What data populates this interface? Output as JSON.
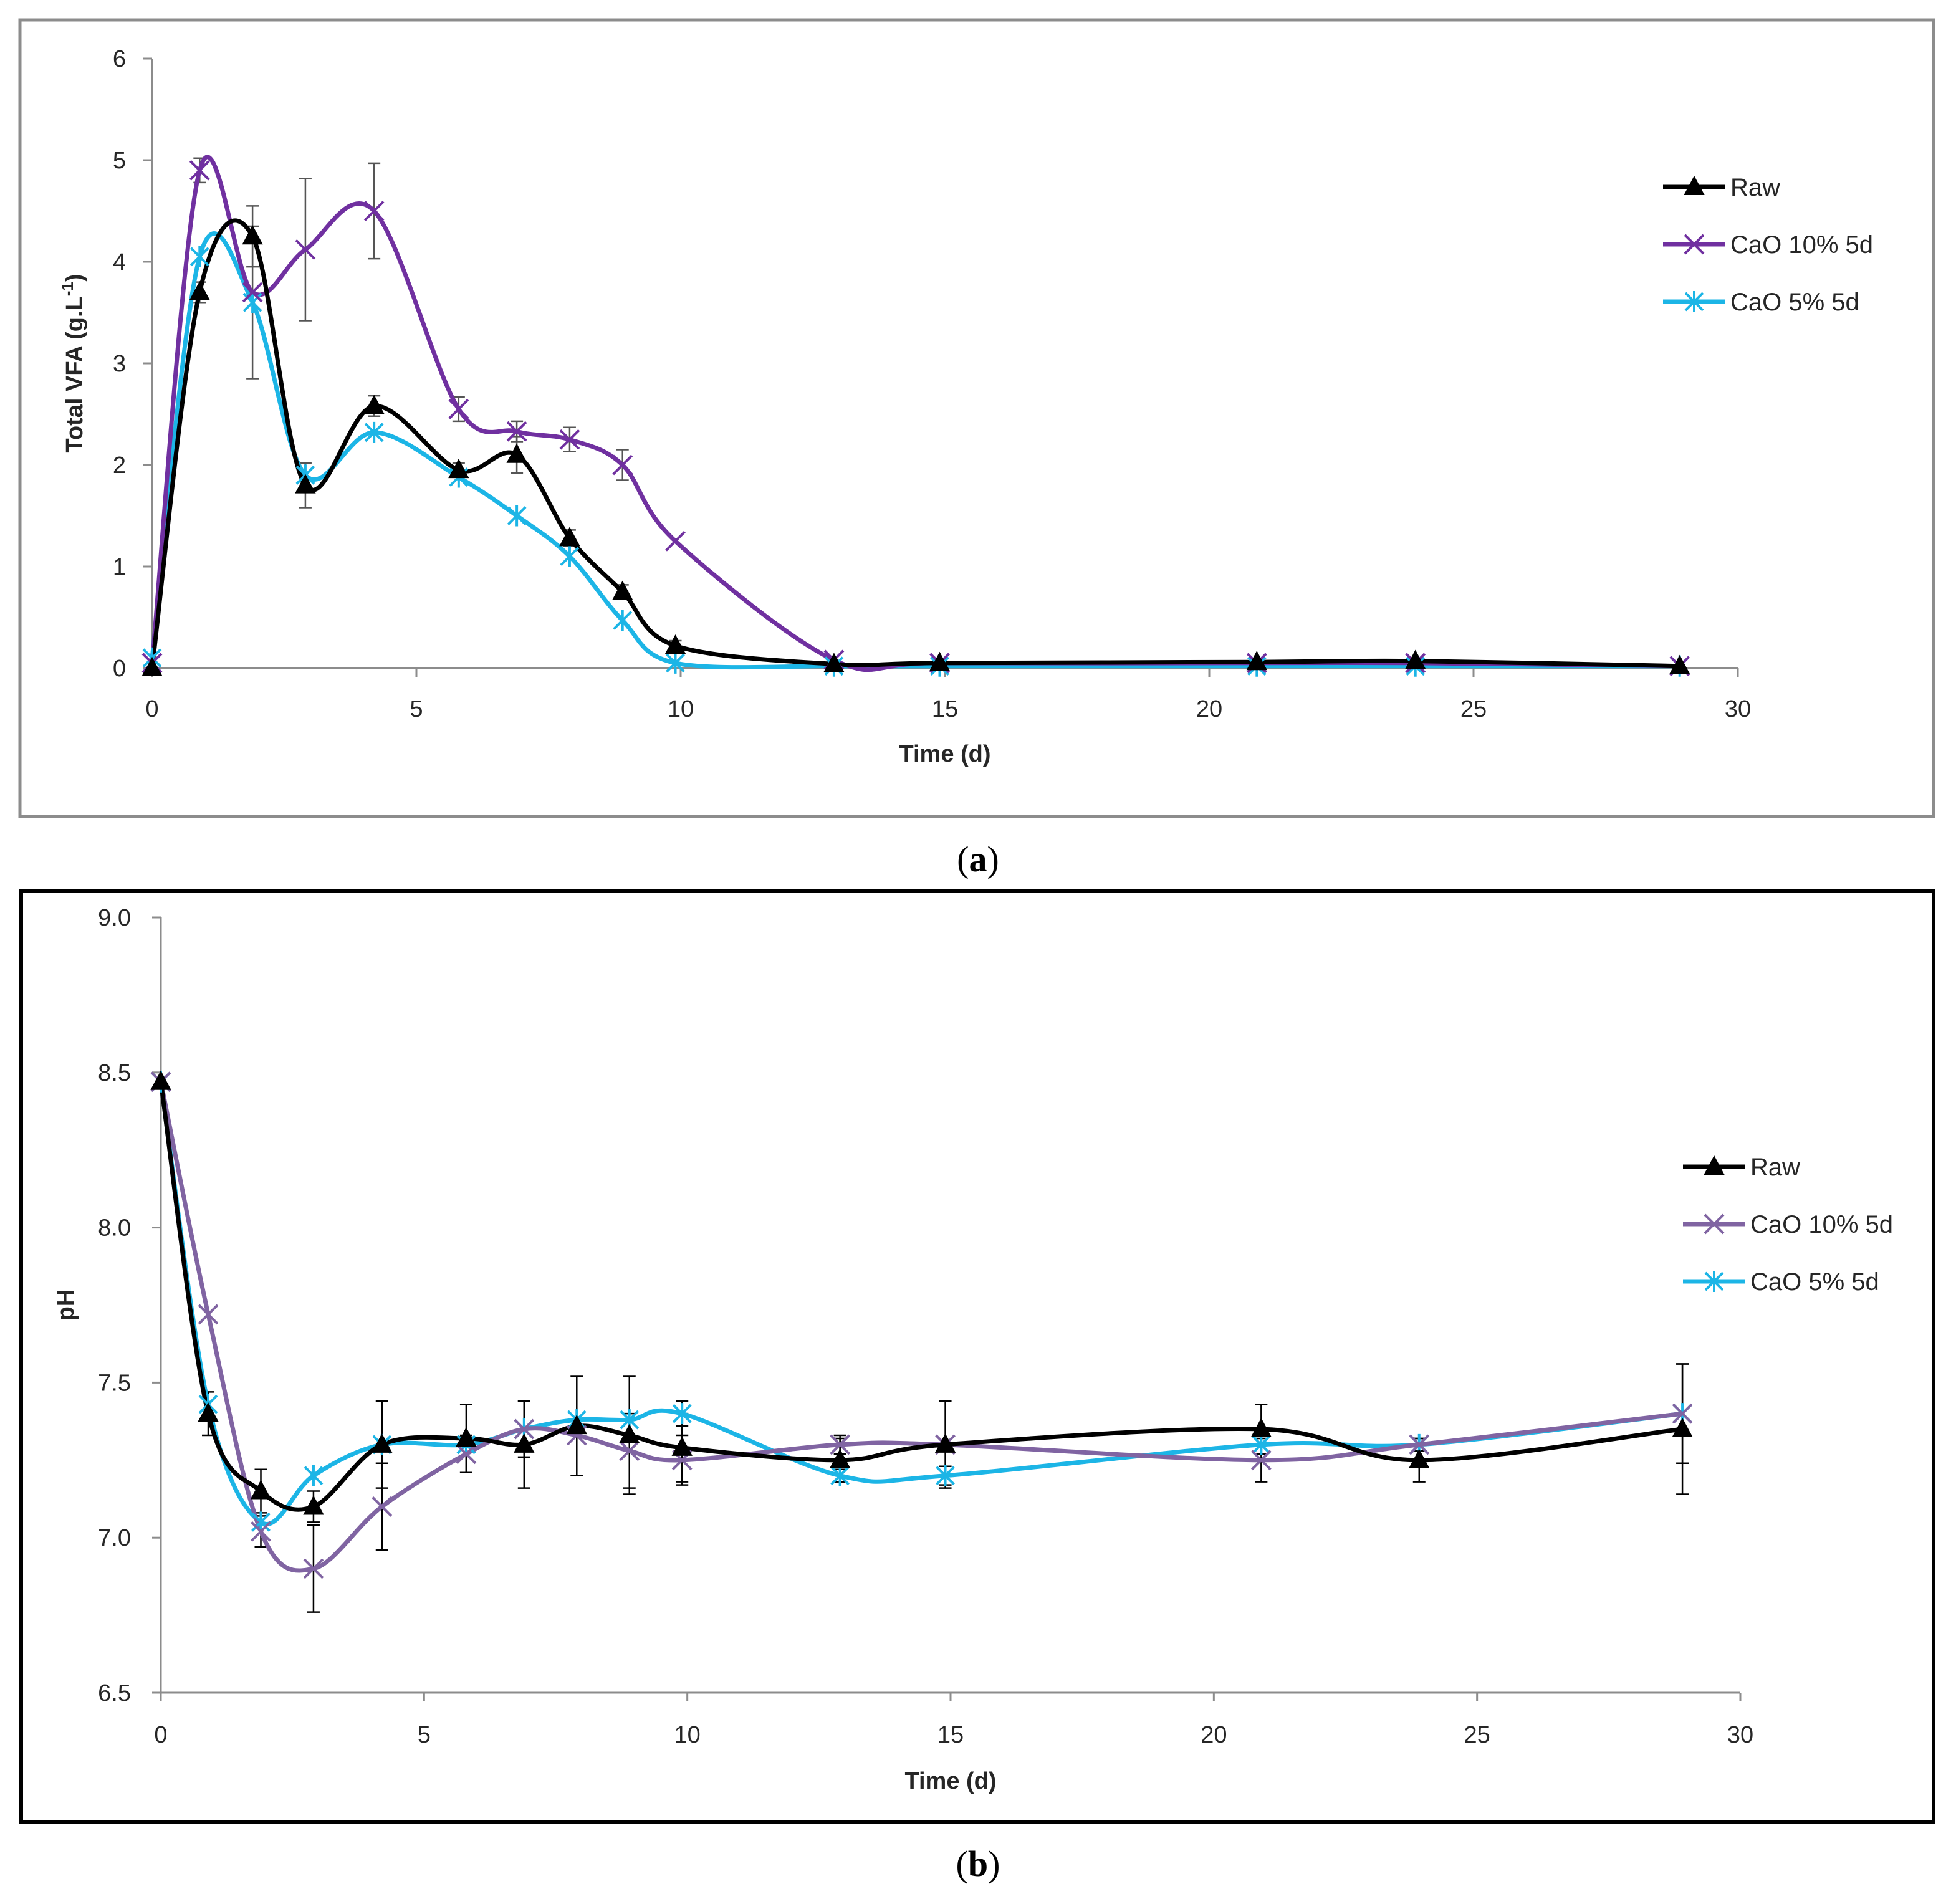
{
  "chart_data": [
    {
      "type": "line",
      "panel": "a",
      "caption_open": "(",
      "caption_letter": "a",
      "caption_close": ")",
      "xlabel": "Time (d)",
      "ylabel_main": "Total VFA (g.L",
      "ylabel_sup": "-1",
      "ylabel_end": ")",
      "xlim": [
        0,
        30
      ],
      "ylim": [
        0,
        6
      ],
      "xticks": [
        0,
        5,
        10,
        15,
        20,
        25,
        30
      ],
      "yticks": [
        0,
        1,
        2,
        3,
        4,
        5,
        6
      ],
      "ytick_labels": [
        "0",
        "1",
        "2",
        "3",
        "4",
        "5",
        "6"
      ],
      "legend_position": "right",
      "series": [
        {
          "name": "Raw",
          "color": "#000000",
          "marker": "triangle",
          "x": [
            0,
            0.9,
            1.9,
            2.9,
            4.2,
            5.8,
            6.9,
            7.9,
            8.9,
            9.9,
            12.9,
            14.9,
            20.9,
            23.9,
            28.9
          ],
          "y": [
            0.0,
            3.7,
            4.25,
            1.8,
            2.58,
            1.95,
            2.1,
            1.28,
            0.75,
            0.22,
            0.04,
            0.05,
            0.06,
            0.07,
            0.02
          ],
          "err": [
            0,
            0.1,
            0.3,
            0.22,
            0.1,
            0.07,
            0.18,
            0.08,
            0.07,
            0.05,
            0,
            0,
            0,
            0,
            0
          ]
        },
        {
          "name": "CaO 10% 5d",
          "color": "#7030A0",
          "marker": "x",
          "x": [
            0,
            0.9,
            1.9,
            2.9,
            4.2,
            5.8,
            6.9,
            7.9,
            8.9,
            9.9,
            12.9,
            14.9,
            20.9,
            23.9,
            28.9
          ],
          "y": [
            0.05,
            4.9,
            3.7,
            4.12,
            4.5,
            2.55,
            2.33,
            2.25,
            2.0,
            1.25,
            0.08,
            0.05,
            0.05,
            0.05,
            0.02
          ],
          "err": [
            0,
            0.12,
            0,
            0.7,
            0.47,
            0.12,
            0.1,
            0.12,
            0.15,
            0,
            0,
            0,
            0,
            0,
            0
          ]
        },
        {
          "name": "CaO 5% 5d",
          "color": "#1CB5E6",
          "marker": "asterisk",
          "x": [
            0,
            0.9,
            1.9,
            2.9,
            4.2,
            5.8,
            6.9,
            7.9,
            8.9,
            9.9,
            12.9,
            14.9,
            20.9,
            23.9,
            28.9
          ],
          "y": [
            0.1,
            4.05,
            3.6,
            1.9,
            2.32,
            1.88,
            1.5,
            1.1,
            0.47,
            0.05,
            0.02,
            0.02,
            0.02,
            0.02,
            0.02
          ],
          "err": [
            0,
            0,
            0.75,
            0,
            0,
            0,
            0,
            0,
            0,
            0,
            0,
            0,
            0,
            0,
            0
          ]
        }
      ]
    },
    {
      "type": "line",
      "panel": "b",
      "caption_open": "(",
      "caption_letter": "b",
      "caption_close": ")",
      "xlabel": "Time (d)",
      "ylabel_main": "pH",
      "ylabel_sup": "",
      "ylabel_end": "",
      "xlim": [
        0,
        30
      ],
      "ylim": [
        6.5,
        9.0
      ],
      "xticks": [
        0,
        5,
        10,
        15,
        20,
        25,
        30
      ],
      "yticks": [
        6.5,
        7.0,
        7.5,
        8.0,
        8.5,
        9.0
      ],
      "ytick_labels": [
        "6.5",
        "7.0",
        "7.5",
        "8.0",
        "8.5",
        "9.0"
      ],
      "legend_position": "right",
      "series": [
        {
          "name": "Raw",
          "color": "#000000",
          "marker": "triangle",
          "x": [
            0,
            0.9,
            1.9,
            2.9,
            4.2,
            5.8,
            6.9,
            7.9,
            8.9,
            9.9,
            12.9,
            14.9,
            20.9,
            23.9,
            28.9
          ],
          "y": [
            8.47,
            7.4,
            7.15,
            7.1,
            7.3,
            7.32,
            7.3,
            7.36,
            7.33,
            7.29,
            7.25,
            7.3,
            7.35,
            7.25,
            7.35
          ],
          "err": [
            0,
            0.07,
            0.07,
            0.05,
            0.14,
            0.11,
            0.14,
            0.16,
            0.19,
            0.11,
            0.07,
            0.14,
            0.08,
            0.07,
            0.21
          ]
        },
        {
          "name": "CaO 10% 5d",
          "color": "#8064A2",
          "marker": "x",
          "x": [
            0,
            0.9,
            1.9,
            2.9,
            4.2,
            5.8,
            6.9,
            7.9,
            8.9,
            9.9,
            12.9,
            14.9,
            20.9,
            23.9,
            28.9
          ],
          "y": [
            8.47,
            7.72,
            7.02,
            6.9,
            7.1,
            7.27,
            7.35,
            7.33,
            7.28,
            7.25,
            7.3,
            7.3,
            7.25,
            7.3,
            7.4
          ],
          "err": [
            0,
            0,
            0.05,
            0.14,
            0.14,
            0.06,
            0.09,
            0,
            0.12,
            0.08,
            0.03,
            0,
            0.07,
            0.02,
            0.16
          ]
        },
        {
          "name": "CaO 5% 5d",
          "color": "#1CB5E6",
          "marker": "asterisk",
          "x": [
            0,
            0.9,
            1.9,
            2.9,
            4.2,
            5.8,
            6.9,
            7.9,
            8.9,
            9.9,
            12.9,
            14.9,
            20.9,
            23.9,
            28.9
          ],
          "y": [
            8.47,
            7.43,
            7.05,
            7.2,
            7.3,
            7.3,
            7.35,
            7.38,
            7.38,
            7.4,
            7.2,
            7.2,
            7.3,
            7.3,
            7.4
          ],
          "err": [
            0,
            0,
            0,
            0,
            0,
            0,
            0,
            0,
            0,
            0.04,
            0.02,
            0.03,
            0,
            0,
            0
          ]
        }
      ]
    }
  ]
}
